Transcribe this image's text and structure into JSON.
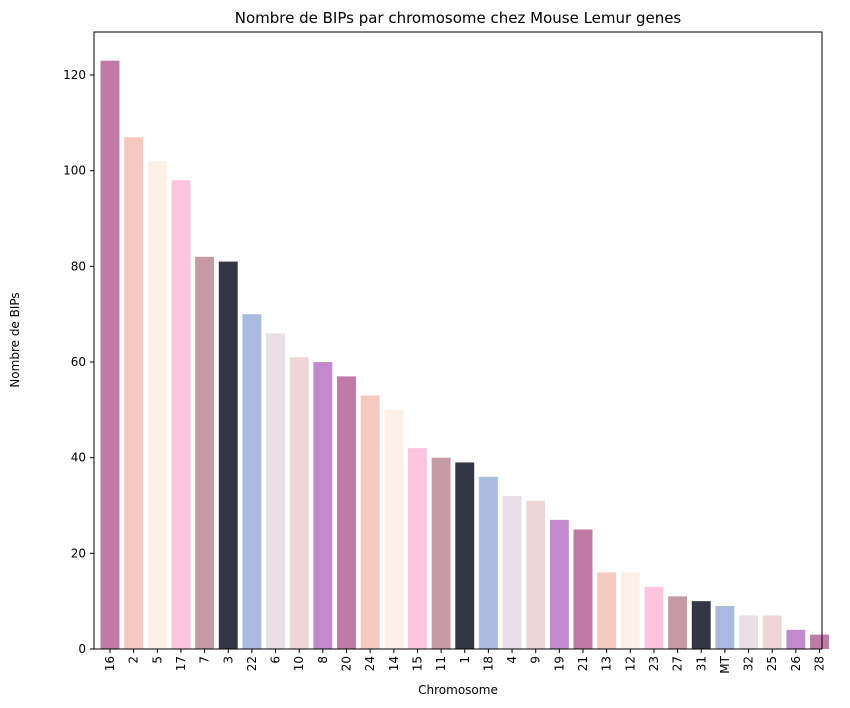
{
  "chart_data": {
    "type": "bar",
    "title": "Nombre de BIPs par chromosome chez Mouse Lemur genes",
    "xlabel": "Chromosome",
    "ylabel": "Nombre de BIPs",
    "ylim": [
      0,
      129
    ],
    "yticks": [
      0,
      20,
      40,
      60,
      80,
      100,
      120
    ],
    "grid": false,
    "categories": [
      "16",
      "2",
      "5",
      "17",
      "7",
      "3",
      "22",
      "6",
      "10",
      "8",
      "20",
      "24",
      "14",
      "15",
      "11",
      "1",
      "18",
      "4",
      "9",
      "19",
      "21",
      "13",
      "12",
      "23",
      "27",
      "31",
      "MT",
      "32",
      "25",
      "26",
      "28"
    ],
    "values": [
      123,
      107,
      102,
      98,
      82,
      81,
      70,
      66,
      61,
      60,
      57,
      53,
      50,
      42,
      40,
      39,
      36,
      32,
      31,
      27,
      25,
      16,
      16,
      13,
      11,
      10,
      9,
      7,
      7,
      4,
      3
    ],
    "colors": [
      "#bf7ba6",
      "#f5c8c0",
      "#fdf0e6",
      "#ffc5e0",
      "#c59aa5",
      "#333645",
      "#a9bce0",
      "#e9dfe5",
      "#f0d5d6",
      "#c18acc",
      "#bf7ba6",
      "#f5c8c0",
      "#fdf0e6",
      "#ffc5e0",
      "#c59aa5",
      "#333645",
      "#a9bce0",
      "#e9dfe5",
      "#f0d5d6",
      "#c18acc",
      "#bf7ba6",
      "#f5c8c0",
      "#fdf0e6",
      "#ffc5e0",
      "#c59aa5",
      "#333645",
      "#a9bce0",
      "#e9dfe5",
      "#f0d5d6",
      "#c18acc",
      "#bf7ba6"
    ]
  }
}
